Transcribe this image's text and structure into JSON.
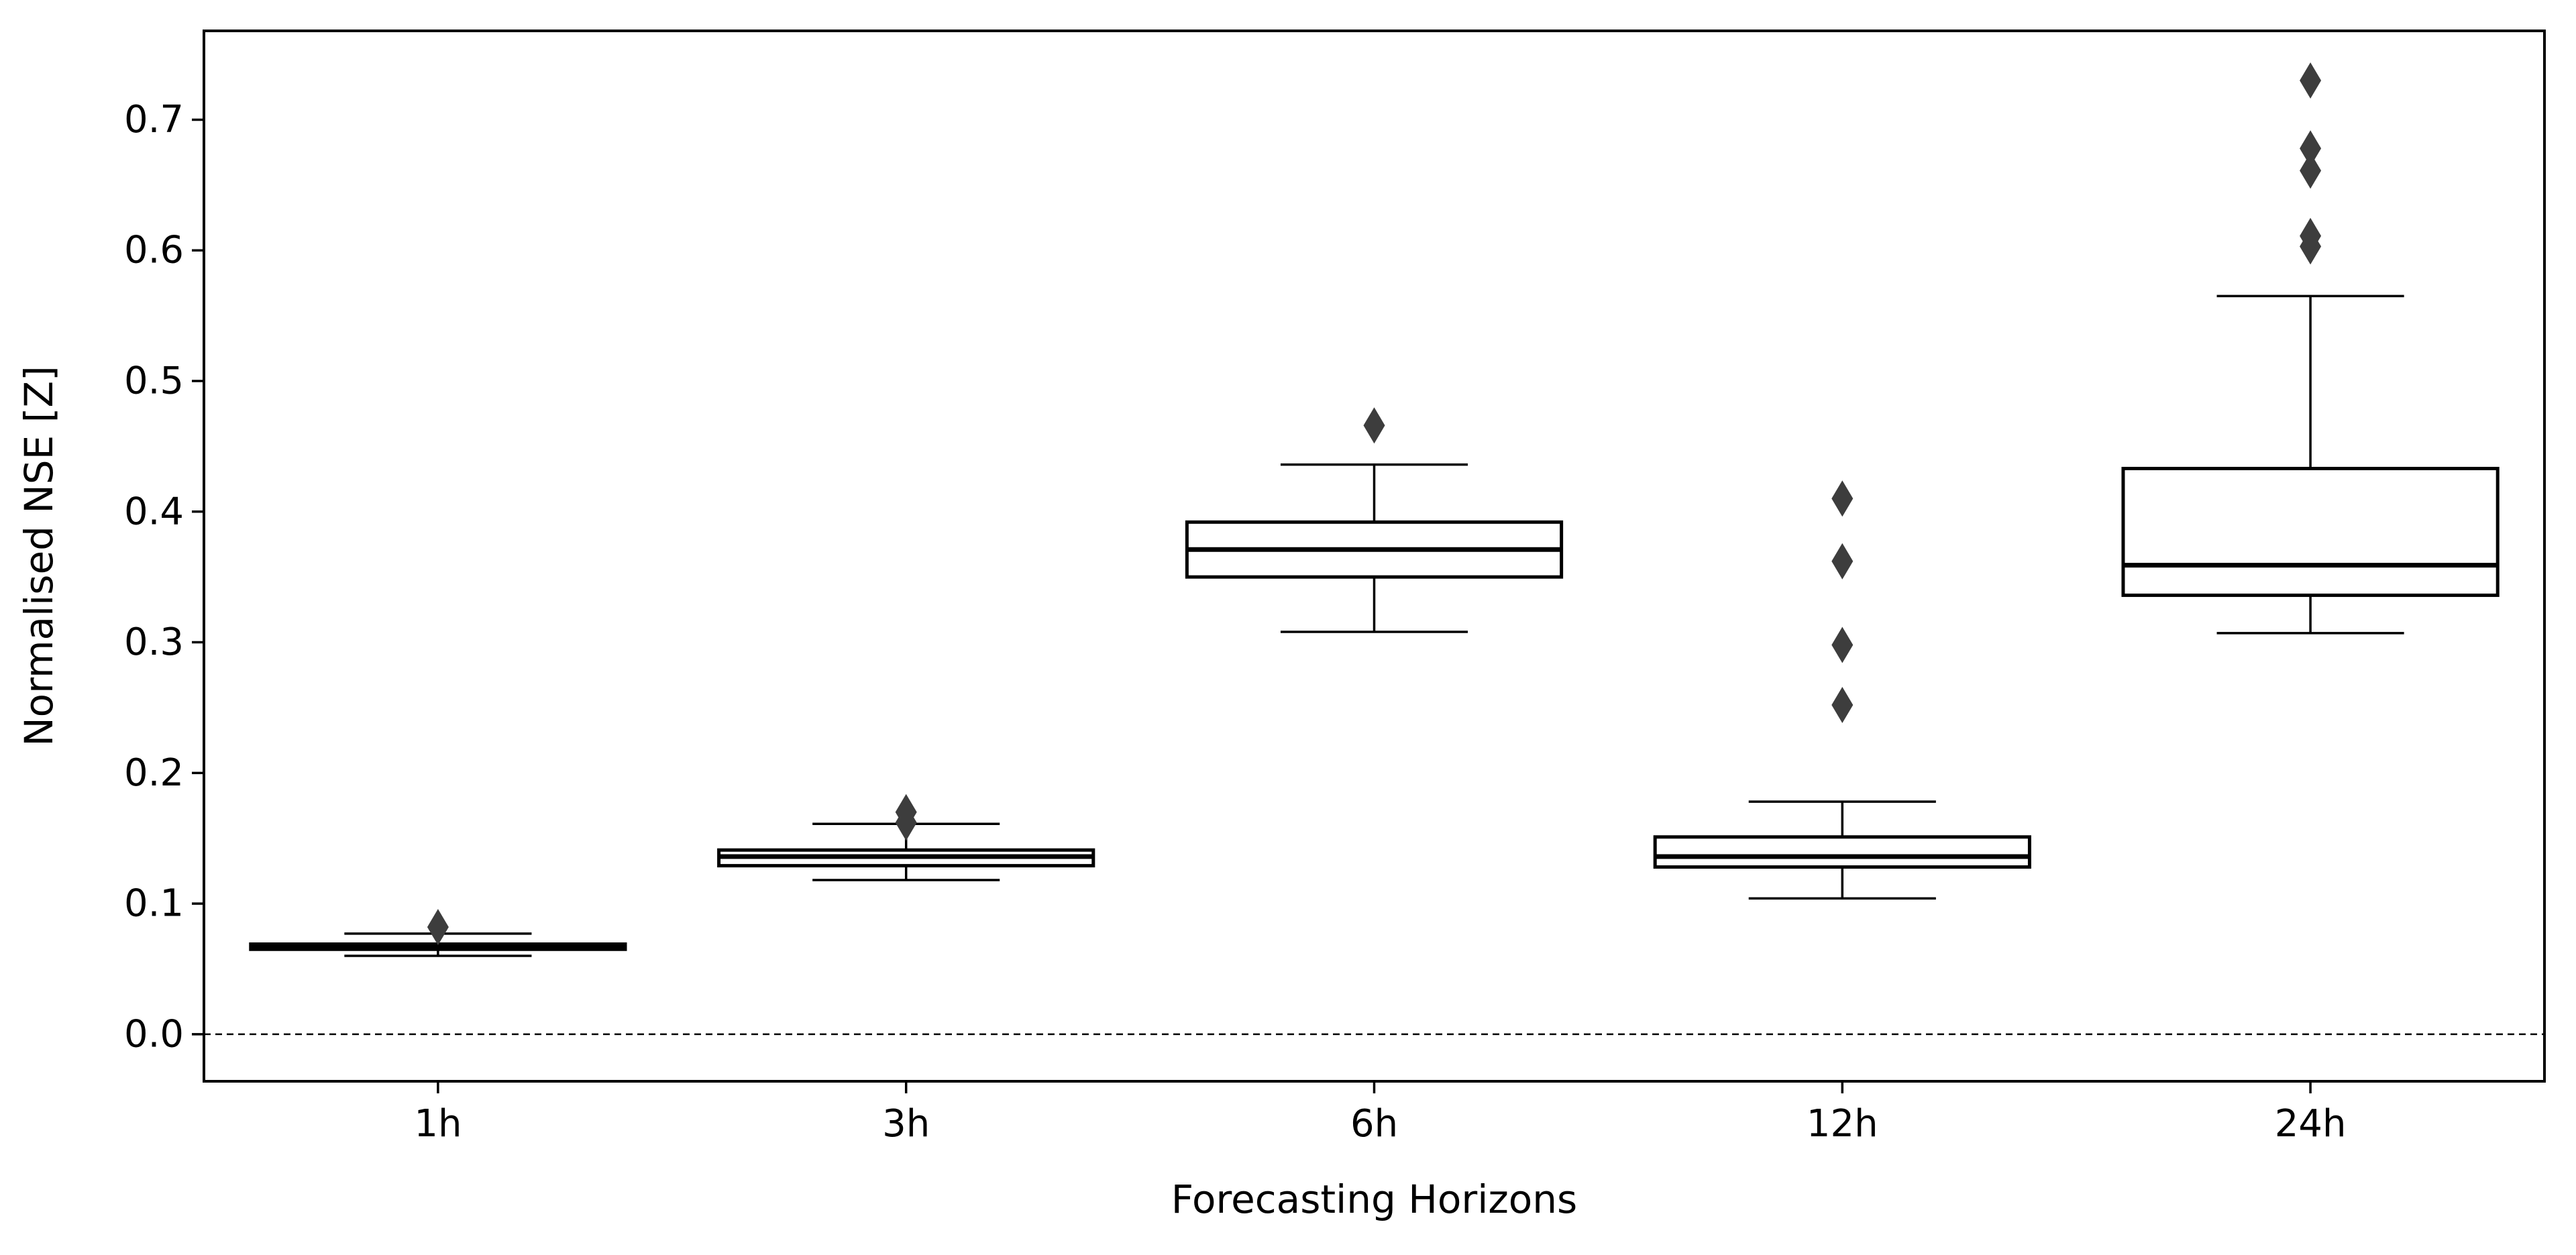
{
  "chart_data": {
    "type": "box",
    "title": "",
    "xlabel": "Forecasting Horizons",
    "ylabel": "Normalised NSE [Z]",
    "ylim": [
      -0.036,
      0.768
    ],
    "yticks": [
      0.0,
      0.1,
      0.2,
      0.3,
      0.4,
      0.5,
      0.6,
      0.7
    ],
    "ytick_labels": [
      "0.0",
      "0.1",
      "0.2",
      "0.3",
      "0.4",
      "0.5",
      "0.6",
      "0.7"
    ],
    "categories": [
      "1h",
      "3h",
      "6h",
      "12h",
      "24h"
    ],
    "grid": false,
    "reference_line": {
      "y": 0.0,
      "style": "dashed"
    },
    "boxes": [
      {
        "category": "1h",
        "whisker_low": 0.06,
        "q1": 0.065,
        "median": 0.067,
        "q3": 0.069,
        "whisker_high": 0.077,
        "outliers": [
          0.082
        ]
      },
      {
        "category": "3h",
        "whisker_low": 0.118,
        "q1": 0.129,
        "median": 0.136,
        "q3": 0.141,
        "whisker_high": 0.161,
        "outliers": [
          0.17,
          0.162
        ]
      },
      {
        "category": "6h",
        "whisker_low": 0.308,
        "q1": 0.35,
        "median": 0.371,
        "q3": 0.392,
        "whisker_high": 0.436,
        "outliers": [
          0.466
        ]
      },
      {
        "category": "12h",
        "whisker_low": 0.104,
        "q1": 0.128,
        "median": 0.136,
        "q3": 0.151,
        "whisker_high": 0.178,
        "outliers": [
          0.252,
          0.298,
          0.362,
          0.41
        ]
      },
      {
        "category": "24h",
        "whisker_low": 0.307,
        "q1": 0.336,
        "median": 0.359,
        "q3": 0.433,
        "whisker_high": 0.565,
        "outliers": [
          0.603,
          0.611,
          0.661,
          0.678,
          0.73
        ]
      }
    ],
    "colors": {
      "box_edge": "#000000",
      "box_fill": "#ffffff",
      "outlier": "#3d3d3d",
      "reference_line": "#000000"
    }
  }
}
